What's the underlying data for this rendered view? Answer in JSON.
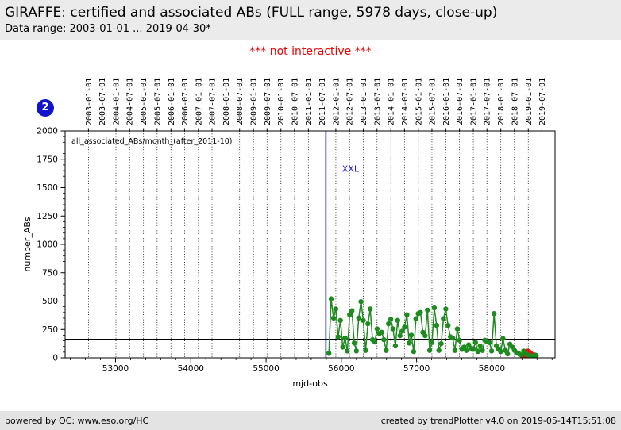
{
  "header": {
    "title": "GIRAFFE: certified and associated ABs (FULL range, 5978 days, close-up)",
    "subtitle": "Data range: 2003-01-01 ... 2019-04-30*"
  },
  "notice": "*** not interactive ***",
  "badge": {
    "label": "2"
  },
  "footer": {
    "left": "powered by QC: www.eso.org/HC",
    "right": "created by trendPlotter v4.0 on 2019-05-14T15:51:08"
  },
  "colors": {
    "series_green": "#1e8b1e",
    "outlier_red": "#ee1111",
    "event_blue": "#0000dd",
    "annotation_blue": "#2222cc",
    "grid": "#000000",
    "notice_red": "#ee0000"
  },
  "chart_data": {
    "type": "line",
    "xlabel": "mjd-obs",
    "ylabel": "number_ABs",
    "xlim": [
      52330,
      58840
    ],
    "ylim": [
      0,
      2000
    ],
    "x_major_ticks": [
      53000,
      54000,
      55000,
      56000,
      57000,
      58000
    ],
    "x_minor_step": 200,
    "y_major_ticks": [
      0,
      250,
      500,
      750,
      1000,
      1250,
      1500,
      1750,
      2000
    ],
    "y_minor_step": 50,
    "grid": "vertical dotted lines at every half-year date of the top axis",
    "legend_label": "all_associated_ABs/month_(after_2011-10)",
    "threshold_line_y": 164,
    "event_line_mjd": 55795,
    "annotation": {
      "text": "XXL",
      "mjd": 56010,
      "y": 1660
    },
    "top_axis_dates": [
      "2003-01-01",
      "2003-07-01",
      "2004-01-01",
      "2004-07-01",
      "2005-01-01",
      "2005-07-01",
      "2006-01-01",
      "2006-07-01",
      "2007-01-01",
      "2007-07-01",
      "2008-01-01",
      "2008-07-01",
      "2009-01-01",
      "2009-07-01",
      "2010-01-01",
      "2010-07-01",
      "2011-01-01",
      "2011-07-01",
      "2012-01-01",
      "2012-07-01",
      "2013-01-01",
      "2013-07-01",
      "2014-01-01",
      "2014-07-01",
      "2015-01-01",
      "2015-07-01",
      "2016-01-01",
      "2016-07-01",
      "2017-01-01",
      "2017-07-01",
      "2018-01-01",
      "2018-07-01",
      "2019-01-01",
      "2019-07-01"
    ],
    "series": [
      {
        "name": "all_associated_ABs_per_month",
        "color": "#1e8b1e",
        "marker_radius": 3.2,
        "connect": true,
        "points": [
          [
            55835,
            40
          ],
          [
            55865,
            520
          ],
          [
            55896,
            350
          ],
          [
            55927,
            430
          ],
          [
            55957,
            185
          ],
          [
            55988,
            330
          ],
          [
            56019,
            95
          ],
          [
            56049,
            175
          ],
          [
            56080,
            60
          ],
          [
            56110,
            380
          ],
          [
            56141,
            415
          ],
          [
            56172,
            130
          ],
          [
            56200,
            60
          ],
          [
            56231,
            350
          ],
          [
            56261,
            495
          ],
          [
            56292,
            330
          ],
          [
            56322,
            65
          ],
          [
            56353,
            300
          ],
          [
            56384,
            430
          ],
          [
            56414,
            160
          ],
          [
            56445,
            140
          ],
          [
            56475,
            255
          ],
          [
            56506,
            215
          ],
          [
            56537,
            225
          ],
          [
            56565,
            160
          ],
          [
            56596,
            65
          ],
          [
            56626,
            300
          ],
          [
            56657,
            340
          ],
          [
            56687,
            255
          ],
          [
            56718,
            105
          ],
          [
            56749,
            330
          ],
          [
            56779,
            195
          ],
          [
            56810,
            235
          ],
          [
            56840,
            270
          ],
          [
            56871,
            380
          ],
          [
            56902,
            130
          ],
          [
            56930,
            200
          ],
          [
            56961,
            55
          ],
          [
            56991,
            345
          ],
          [
            57022,
            390
          ],
          [
            57052,
            400
          ],
          [
            57083,
            225
          ],
          [
            57114,
            195
          ],
          [
            57144,
            420
          ],
          [
            57174,
            65
          ],
          [
            57205,
            135
          ],
          [
            57235,
            440
          ],
          [
            57266,
            285
          ],
          [
            57296,
            65
          ],
          [
            57327,
            125
          ],
          [
            57357,
            345
          ],
          [
            57388,
            430
          ],
          [
            57418,
            285
          ],
          [
            57449,
            185
          ],
          [
            57480,
            175
          ],
          [
            57510,
            65
          ],
          [
            57541,
            255
          ],
          [
            57571,
            155
          ],
          [
            57602,
            75
          ],
          [
            57632,
            95
          ],
          [
            57661,
            65
          ],
          [
            57692,
            115
          ],
          [
            57722,
            85
          ],
          [
            57753,
            75
          ],
          [
            57783,
            135
          ],
          [
            57814,
            55
          ],
          [
            57844,
            105
          ],
          [
            57875,
            65
          ],
          [
            57906,
            155
          ],
          [
            57936,
            145
          ],
          [
            57967,
            135
          ],
          [
            57997,
            60
          ],
          [
            58030,
            390
          ],
          [
            58060,
            105
          ],
          [
            58090,
            75
          ],
          [
            58118,
            55
          ],
          [
            58148,
            170
          ],
          [
            58179,
            65
          ],
          [
            58209,
            35
          ],
          [
            58240,
            120
          ],
          [
            58271,
            95
          ],
          [
            58301,
            65
          ],
          [
            58332,
            45
          ],
          [
            58362,
            35
          ],
          [
            58391,
            25
          ],
          [
            58422,
            60
          ],
          [
            58452,
            35
          ],
          [
            58482,
            25
          ],
          [
            58513,
            18
          ],
          [
            58543,
            12
          ],
          [
            58574,
            25
          ],
          [
            58590,
            20
          ]
        ]
      },
      {
        "name": "flagged_outliers",
        "color": "#ee1111",
        "marker_radius": 7.2,
        "connect": false,
        "points": [
          [
            58470,
            30
          ],
          [
            58500,
            12
          ]
        ]
      }
    ]
  }
}
